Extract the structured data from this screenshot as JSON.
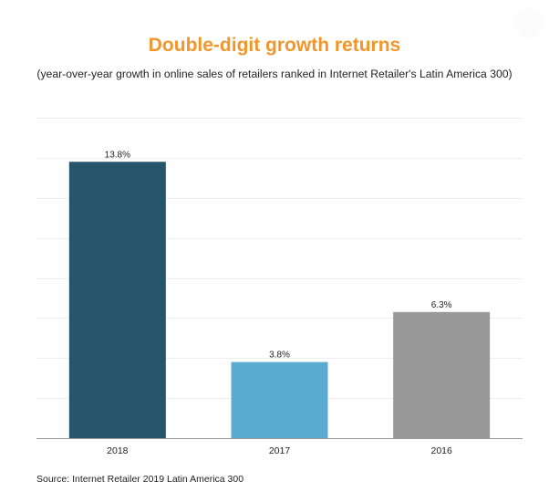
{
  "chart_data": {
    "type": "bar",
    "title": "Double-digit growth returns",
    "subtitle": "(year-over-year growth in online sales of retailers ranked in Internet Retailer's Latin America 300)",
    "categories": [
      "2018",
      "2017",
      "2016"
    ],
    "values": [
      13.8,
      3.8,
      6.3
    ],
    "data_labels": [
      "13.8%",
      "3.8%",
      "6.3%"
    ],
    "xlabel": "",
    "ylabel": "",
    "ylim": [
      0,
      16
    ],
    "y_gridline_step": 2,
    "show_y_tick_labels": false,
    "grid": true,
    "legend": "none",
    "source": "Source: Internet Retailer 2019 Latin America 300"
  },
  "colors": {
    "title": "#f39629",
    "bars": [
      "#27556c",
      "#5aaccf",
      "#999999"
    ],
    "gridline": "#eeeeee",
    "axis": "#999999"
  }
}
